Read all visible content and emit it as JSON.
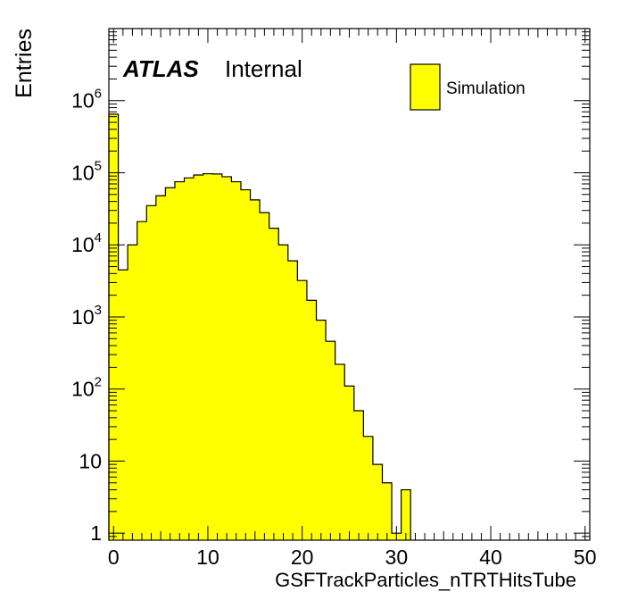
{
  "chart_data": {
    "type": "bar",
    "style": "histogram",
    "xlabel": "GSFTrackParticles_nTRTHitsTube",
    "ylabel": "Entries",
    "x_scale": "linear",
    "y_scale": "log",
    "xlim": [
      -0.5,
      50.5
    ],
    "ylim": [
      0.8,
      10000000
    ],
    "bin_width": 1,
    "x_ticks": [
      0,
      10,
      20,
      30,
      40,
      50
    ],
    "x_tick_labels": [
      "0",
      "10",
      "20",
      "30",
      "40",
      "50"
    ],
    "y_ticks": [
      {
        "value": 1,
        "base": "1",
        "exp": ""
      },
      {
        "value": 10,
        "base": "10",
        "exp": ""
      },
      {
        "value": 100,
        "base": "10",
        "exp": "2"
      },
      {
        "value": 1000,
        "base": "10",
        "exp": "3"
      },
      {
        "value": 10000,
        "base": "10",
        "exp": "4"
      },
      {
        "value": 100000,
        "base": "10",
        "exp": "5"
      },
      {
        "value": 1000000,
        "base": "10",
        "exp": "6"
      }
    ],
    "fill_color": "#ffff00",
    "line_color": "#000000",
    "series": [
      {
        "name": "Simulation",
        "bin_centers": [
          0,
          1,
          2,
          3,
          4,
          5,
          6,
          7,
          8,
          9,
          10,
          11,
          12,
          13,
          14,
          15,
          16,
          17,
          18,
          19,
          20,
          21,
          22,
          23,
          24,
          25,
          26,
          27,
          28,
          29,
          30,
          31
        ],
        "values": [
          650000,
          4500,
          10000,
          21000,
          35000,
          48000,
          62000,
          75000,
          85000,
          93000,
          97000,
          96000,
          88000,
          75000,
          58000,
          42000,
          28000,
          17000,
          10000,
          6000,
          3200,
          1700,
          900,
          460,
          220,
          110,
          50,
          22,
          9,
          5,
          1,
          4
        ]
      }
    ],
    "legend": {
      "placement": "top-right",
      "entries": [
        "Simulation"
      ]
    },
    "label": {
      "experiment": "ATLAS",
      "status": "Internal"
    }
  }
}
